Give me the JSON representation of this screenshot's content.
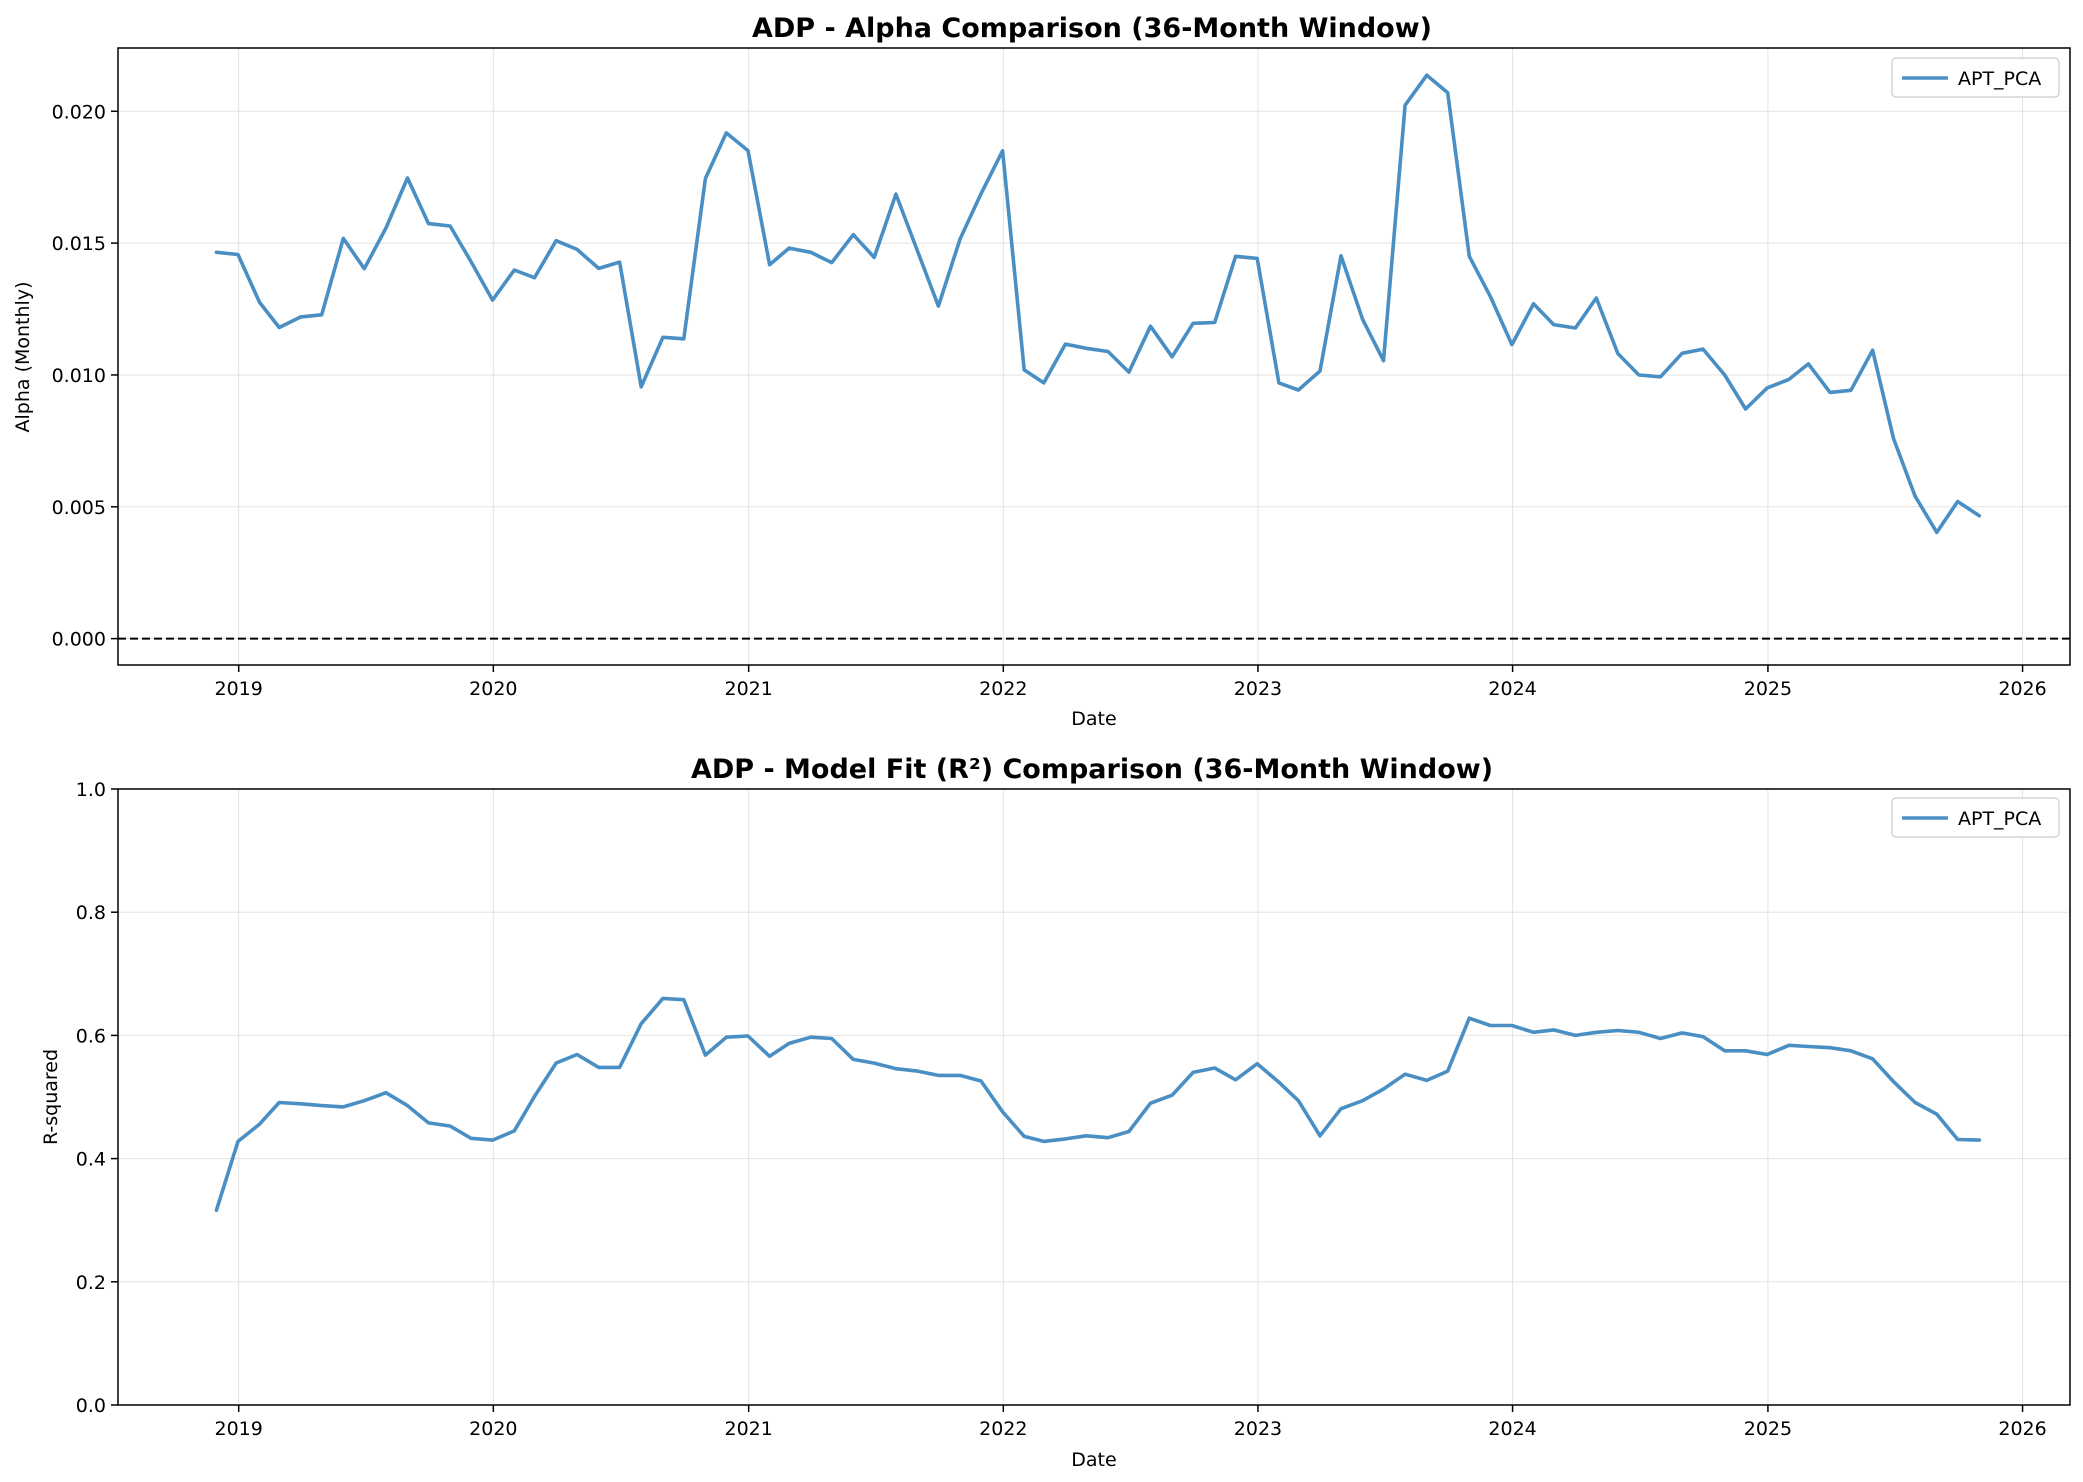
{
  "colors": {
    "series": "#4a8fc4",
    "background": "#ffffff",
    "zero_line": "#000000"
  },
  "chart_data": [
    {
      "type": "line",
      "title": "ADP - Alpha Comparison (36-Month Window)",
      "xlabel": "Date",
      "ylabel": "Alpha (Monthly)",
      "xlim": [
        "2018-07-12",
        "2026-03-10"
      ],
      "ylim": [
        -0.001,
        0.0224
      ],
      "xticks": [
        "2019",
        "2020",
        "2021",
        "2022",
        "2023",
        "2024",
        "2025",
        "2026"
      ],
      "yticks": [
        "0.000",
        "0.005",
        "0.010",
        "0.015",
        "0.020"
      ],
      "grid": true,
      "legend": "top-right",
      "zero_line": true,
      "x": [
        "2018-11-30",
        "2018-12-31",
        "2019-01-31",
        "2019-02-28",
        "2019-03-31",
        "2019-04-30",
        "2019-05-31",
        "2019-06-30",
        "2019-07-31",
        "2019-08-31",
        "2019-09-30",
        "2019-10-31",
        "2019-11-30",
        "2019-12-31",
        "2020-01-31",
        "2020-02-29",
        "2020-03-31",
        "2020-04-30",
        "2020-05-31",
        "2020-06-30",
        "2020-07-31",
        "2020-08-31",
        "2020-09-30",
        "2020-10-31",
        "2020-11-30",
        "2020-12-31",
        "2021-01-31",
        "2021-02-28",
        "2021-03-31",
        "2021-04-30",
        "2021-05-31",
        "2021-06-30",
        "2021-07-31",
        "2021-08-31",
        "2021-09-30",
        "2021-10-31",
        "2021-11-30",
        "2021-12-31",
        "2022-01-31",
        "2022-02-28",
        "2022-03-31",
        "2022-04-30",
        "2022-05-31",
        "2022-06-30",
        "2022-07-31",
        "2022-08-31",
        "2022-09-30",
        "2022-10-31",
        "2022-11-30",
        "2022-12-31",
        "2023-01-31",
        "2023-02-28",
        "2023-03-31",
        "2023-04-30",
        "2023-05-31",
        "2023-06-30",
        "2023-07-31",
        "2023-08-31",
        "2023-09-30",
        "2023-10-31",
        "2023-11-30",
        "2023-12-31",
        "2024-01-31",
        "2024-02-29",
        "2024-03-31",
        "2024-04-30",
        "2024-05-31",
        "2024-06-30",
        "2024-07-31",
        "2024-08-31",
        "2024-09-30",
        "2024-10-31",
        "2024-11-30",
        "2024-12-31",
        "2025-01-31",
        "2025-02-28",
        "2025-03-31",
        "2025-04-30",
        "2025-05-31",
        "2025-06-30",
        "2025-07-31",
        "2025-08-31",
        "2025-09-30",
        "2025-10-31"
      ],
      "series": [
        {
          "name": "APT_PCA",
          "values": [
            0.01465,
            0.01457,
            0.01275,
            0.0118,
            0.0122,
            0.01228,
            0.01518,
            0.01403,
            0.01557,
            0.01747,
            0.01574,
            0.01565,
            0.0143,
            0.01284,
            0.01398,
            0.01369,
            0.01509,
            0.01476,
            0.01404,
            0.01428,
            0.00955,
            0.01143,
            0.01137,
            0.01745,
            0.01918,
            0.01851,
            0.01418,
            0.01481,
            0.01465,
            0.01426,
            0.01532,
            0.01446,
            0.01686,
            0.0147,
            0.01261,
            0.01516,
            0.01687,
            0.0185,
            0.01019,
            0.0097,
            0.01117,
            0.01101,
            0.01089,
            0.01011,
            0.01185,
            0.01069,
            0.01196,
            0.01199,
            0.0145,
            0.01442,
            0.0097,
            0.00943,
            0.01015,
            0.01452,
            0.01211,
            0.01054,
            0.02023,
            0.02137,
            0.0207,
            0.0145,
            0.01298,
            0.01115,
            0.0127,
            0.01191,
            0.01178,
            0.01292,
            0.01081,
            0.01,
            0.00993,
            0.01082,
            0.01098,
            0.01,
            0.00871,
            0.00951,
            0.00983,
            0.01042,
            0.00934,
            0.00942,
            0.01094,
            0.00759,
            0.0054,
            0.00403,
            0.0052,
            0.00466
          ]
        }
      ]
    },
    {
      "type": "line",
      "title": "ADP - Model Fit (R²) Comparison (36-Month Window)",
      "xlabel": "Date",
      "ylabel": "R-squared",
      "xlim": [
        "2018-07-12",
        "2026-03-10"
      ],
      "ylim": [
        0.0,
        1.0
      ],
      "xticks": [
        "2019",
        "2020",
        "2021",
        "2022",
        "2023",
        "2024",
        "2025",
        "2026"
      ],
      "yticks": [
        "0.0",
        "0.2",
        "0.4",
        "0.6",
        "0.8",
        "1.0"
      ],
      "grid": true,
      "legend": "top-right",
      "x": [
        "2018-11-30",
        "2018-12-31",
        "2019-01-31",
        "2019-02-28",
        "2019-03-31",
        "2019-04-30",
        "2019-05-31",
        "2019-06-30",
        "2019-07-31",
        "2019-08-31",
        "2019-09-30",
        "2019-10-31",
        "2019-11-30",
        "2019-12-31",
        "2020-01-31",
        "2020-02-29",
        "2020-03-31",
        "2020-04-30",
        "2020-05-31",
        "2020-06-30",
        "2020-07-31",
        "2020-08-31",
        "2020-09-30",
        "2020-10-31",
        "2020-11-30",
        "2020-12-31",
        "2021-01-31",
        "2021-02-28",
        "2021-03-31",
        "2021-04-30",
        "2021-05-31",
        "2021-06-30",
        "2021-07-31",
        "2021-08-31",
        "2021-09-30",
        "2021-10-31",
        "2021-11-30",
        "2021-12-31",
        "2022-01-31",
        "2022-02-28",
        "2022-03-31",
        "2022-04-30",
        "2022-05-31",
        "2022-06-30",
        "2022-07-31",
        "2022-08-31",
        "2022-09-30",
        "2022-10-31",
        "2022-11-30",
        "2022-12-31",
        "2023-01-31",
        "2023-02-28",
        "2023-03-31",
        "2023-04-30",
        "2023-05-31",
        "2023-06-30",
        "2023-07-31",
        "2023-08-31",
        "2023-09-30",
        "2023-10-31",
        "2023-11-30",
        "2023-12-31",
        "2024-01-31",
        "2024-02-29",
        "2024-03-31",
        "2024-04-30",
        "2024-05-31",
        "2024-06-30",
        "2024-07-31",
        "2024-08-31",
        "2024-09-30",
        "2024-10-31",
        "2024-11-30",
        "2024-12-31",
        "2025-01-31",
        "2025-02-28",
        "2025-03-31",
        "2025-04-30",
        "2025-05-31",
        "2025-06-30",
        "2025-07-31",
        "2025-08-31",
        "2025-09-30",
        "2025-10-31"
      ],
      "series": [
        {
          "name": "APT_PCA",
          "values": [
            0.316,
            0.428,
            0.456,
            0.491,
            0.489,
            0.486,
            0.484,
            0.494,
            0.507,
            0.486,
            0.458,
            0.453,
            0.433,
            0.43,
            0.445,
            0.501,
            0.555,
            0.569,
            0.548,
            0.548,
            0.619,
            0.66,
            0.658,
            0.568,
            0.597,
            0.599,
            0.566,
            0.587,
            0.597,
            0.595,
            0.561,
            0.555,
            0.546,
            0.542,
            0.535,
            0.535,
            0.526,
            0.476,
            0.436,
            0.428,
            0.432,
            0.437,
            0.434,
            0.444,
            0.49,
            0.503,
            0.54,
            0.547,
            0.528,
            0.554,
            0.524,
            0.494,
            0.437,
            0.481,
            0.494,
            0.513,
            0.537,
            0.527,
            0.542,
            0.628,
            0.616,
            0.616,
            0.605,
            0.609,
            0.6,
            0.605,
            0.608,
            0.605,
            0.595,
            0.604,
            0.598,
            0.575,
            0.575,
            0.569,
            0.584,
            0.582,
            0.58,
            0.575,
            0.562,
            0.525,
            0.491,
            0.472,
            0.431,
            0.43
          ]
        }
      ]
    }
  ]
}
